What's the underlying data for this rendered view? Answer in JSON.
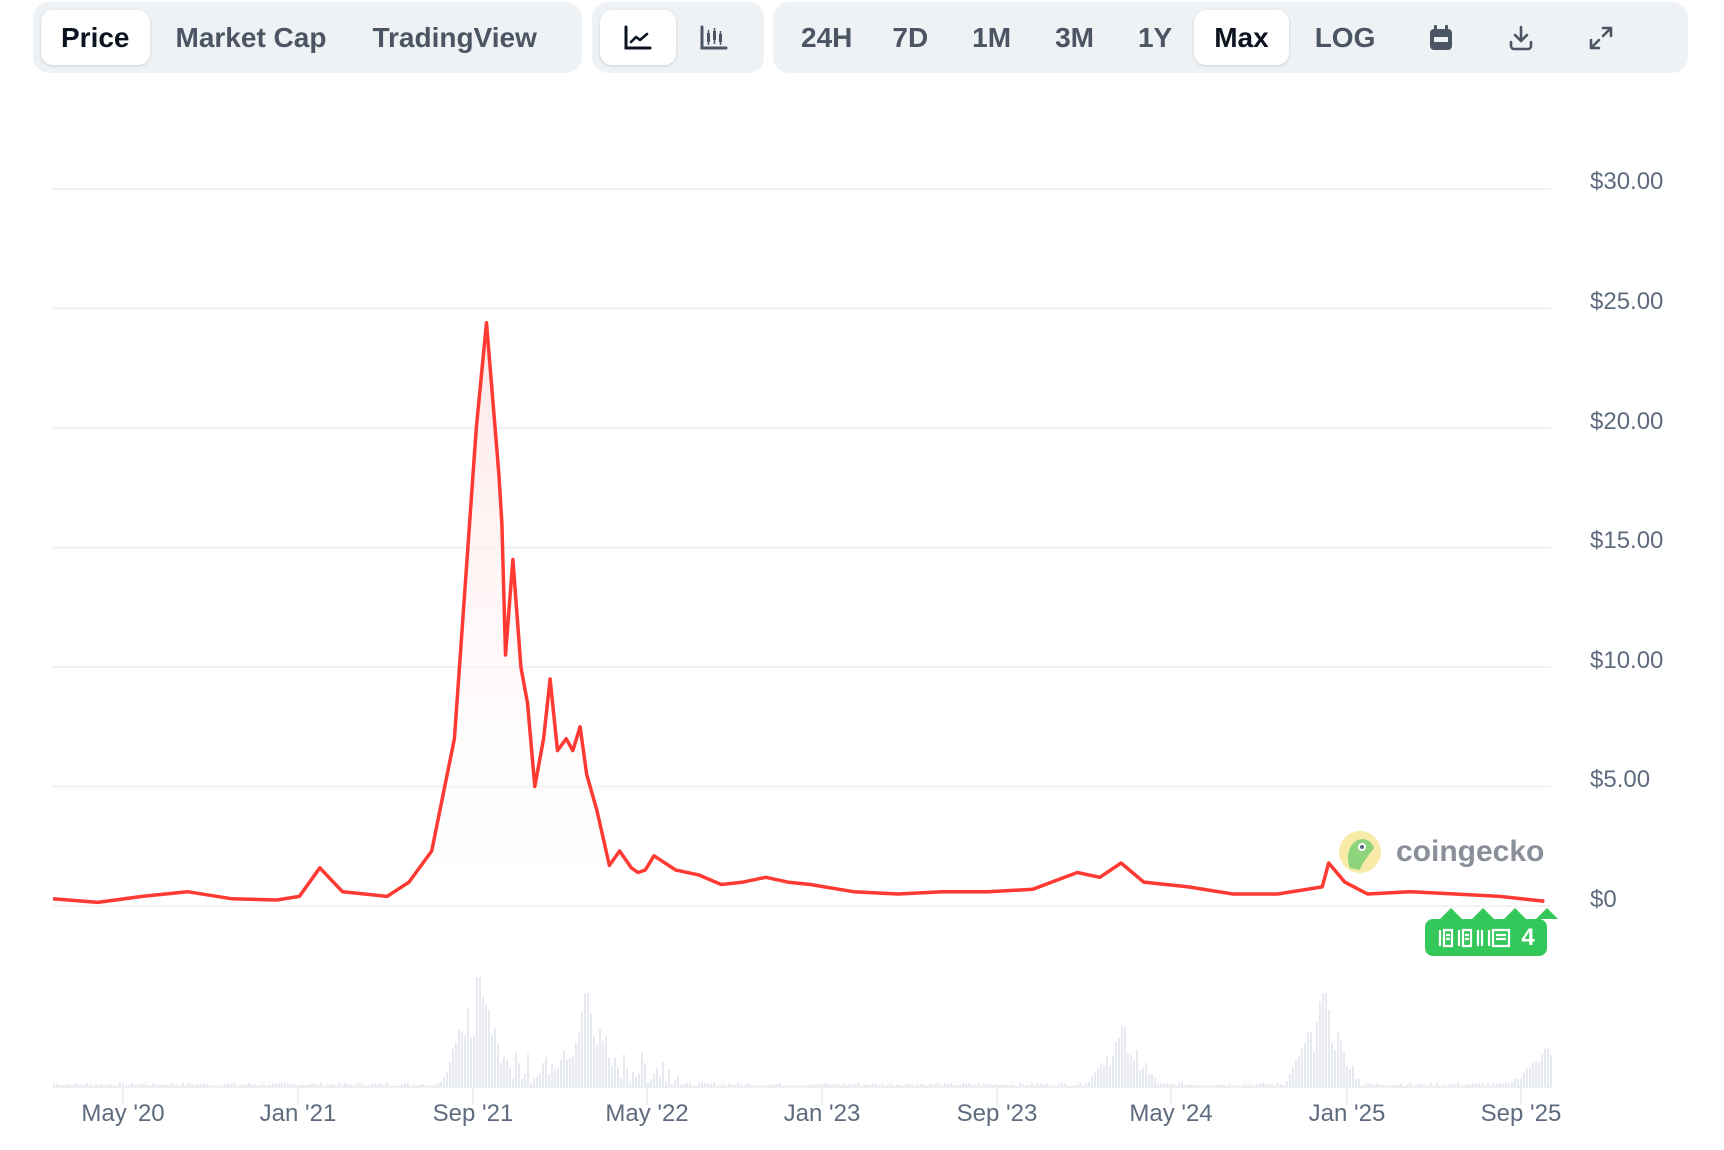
{
  "toolbar": {
    "view_tabs": [
      {
        "label": "Price",
        "active": true
      },
      {
        "label": "Market Cap",
        "active": false
      },
      {
        "label": "TradingView",
        "active": false
      }
    ],
    "chart_types": [
      {
        "icon": "line-chart-icon",
        "active": true
      },
      {
        "icon": "candlestick-chart-icon",
        "active": false
      }
    ],
    "ranges": [
      {
        "label": "24H",
        "active": false
      },
      {
        "label": "7D",
        "active": false
      },
      {
        "label": "1M",
        "active": false
      },
      {
        "label": "3M",
        "active": false
      },
      {
        "label": "1Y",
        "active": false
      },
      {
        "label": "Max",
        "active": true
      },
      {
        "label": "LOG",
        "active": false
      }
    ],
    "actions": [
      {
        "icon": "calendar-icon"
      },
      {
        "icon": "download-icon"
      },
      {
        "icon": "expand-icon"
      }
    ]
  },
  "watermark": {
    "text": "coingecko"
  },
  "news_badge": {
    "count": "4"
  },
  "colors": {
    "line": "#ff3a33",
    "fill": "#ffe4e4",
    "grid": "#eff2f5",
    "volume": "#e6e9f0",
    "news": "#34c759",
    "axis_text": "#5f6b7e"
  },
  "chart_data": {
    "type": "line",
    "title": "",
    "xlabel": "",
    "ylabel": "",
    "ylim": [
      0,
      30
    ],
    "grid": true,
    "legend": "none",
    "y_ticks": [
      "$0",
      "$5.00",
      "$10.00",
      "$15.00",
      "$20.00",
      "$25.00",
      "$30.00"
    ],
    "y_tick_values": [
      0,
      5,
      10,
      15,
      20,
      25,
      30
    ],
    "x_ticks": [
      "May '20",
      "Jan '21",
      "Sep '21",
      "May '22",
      "Jan '23",
      "Sep '23",
      "May '24",
      "Jan '25",
      "Sep '25"
    ],
    "series": [
      {
        "name": "Price (USD)",
        "x": [
          "2020-03",
          "2020-05",
          "2020-07",
          "2020-09",
          "2020-11",
          "2021-01",
          "2021-02",
          "2021-03",
          "2021-04",
          "2021-05",
          "2021-06",
          "2021-07",
          "2021-08",
          "2021-09",
          "2021-10",
          "2021-10-15",
          "2021-11-01",
          "2021-11-05",
          "2021-11-10",
          "2021-11-20",
          "2021-12-01",
          "2021-12-10",
          "2021-12-20",
          "2022-01-01",
          "2022-01-10",
          "2022-01-20",
          "2022-02-01",
          "2022-02-10",
          "2022-02-20",
          "2022-03-01",
          "2022-03-15",
          "2022-04-01",
          "2022-04-15",
          "2022-05-01",
          "2022-05-10",
          "2022-05-20",
          "2022-06-01",
          "2022-07-01",
          "2022-08-01",
          "2022-09-01",
          "2022-10-01",
          "2022-11-01",
          "2022-12-01",
          "2023-01-01",
          "2023-03-01",
          "2023-05-01",
          "2023-07-01",
          "2023-09-01",
          "2023-11-01",
          "2024-01-01",
          "2024-02-01",
          "2024-03-01",
          "2024-04-01",
          "2024-06-01",
          "2024-08-01",
          "2024-10-01",
          "2024-12-01",
          "2024-12-10",
          "2025-01-01",
          "2025-02-01",
          "2025-04-01",
          "2025-06-01",
          "2025-08-01",
          "2025-10-01"
        ],
        "values": [
          0.3,
          0.15,
          0.4,
          0.6,
          0.3,
          0.25,
          0.4,
          1.6,
          0.6,
          0.5,
          0.4,
          1.0,
          2.3,
          7.0,
          20.0,
          24.4,
          18.0,
          16.0,
          10.5,
          14.5,
          10.0,
          8.5,
          5.0,
          7.0,
          9.5,
          6.5,
          7.0,
          6.5,
          7.5,
          5.5,
          4.0,
          1.7,
          2.3,
          1.6,
          1.4,
          1.5,
          2.1,
          1.5,
          1.3,
          0.9,
          1.0,
          1.2,
          1.0,
          0.9,
          0.6,
          0.5,
          0.6,
          0.6,
          0.7,
          1.4,
          1.2,
          1.8,
          1.0,
          0.8,
          0.5,
          0.5,
          0.8,
          1.8,
          1.0,
          0.5,
          0.6,
          0.5,
          0.4,
          0.2
        ]
      }
    ],
    "volume_peaks": [
      {
        "x": "2021-10",
        "relative": 1.0
      },
      {
        "x": "2022-03",
        "relative": 0.85
      },
      {
        "x": "2024-03",
        "relative": 0.55
      },
      {
        "x": "2024-12",
        "relative": 0.85
      },
      {
        "x": "2025-10",
        "relative": 0.35
      }
    ]
  }
}
